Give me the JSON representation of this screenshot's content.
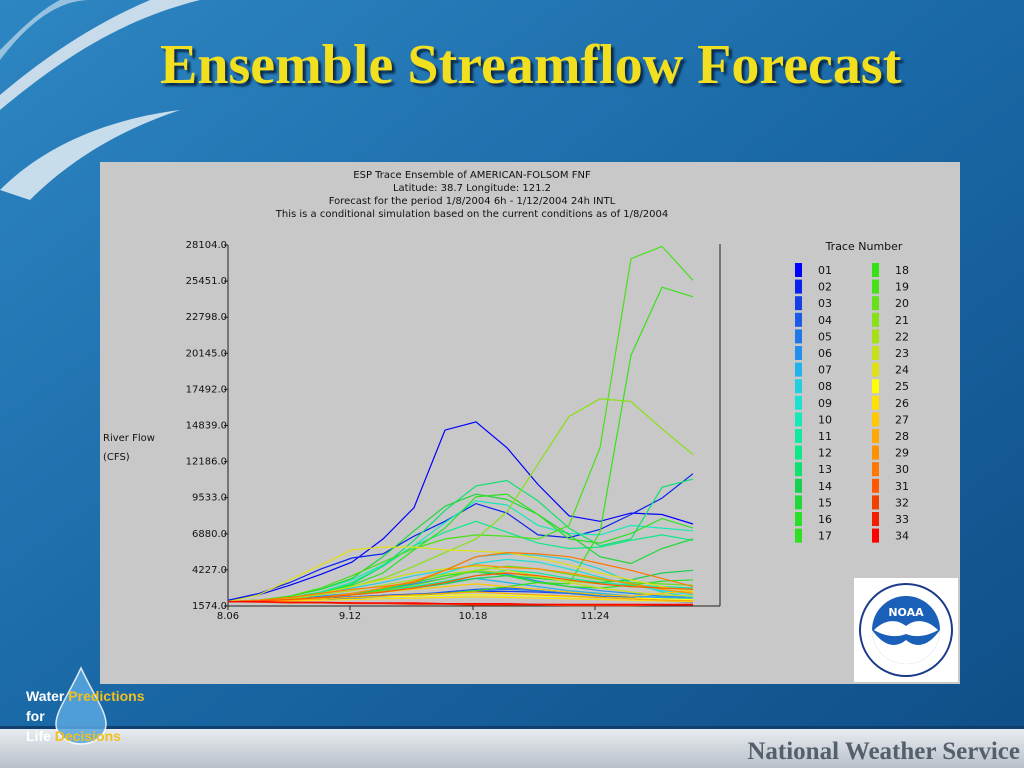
{
  "slide": {
    "title": "Ensemble Streamflow Forecast",
    "tagline": {
      "w1": "Water",
      "w2": "Predictions",
      "w3": "for",
      "w4": "Life",
      "w5": "Decisions"
    },
    "footer": "National Weather Service",
    "logo_text": "NOAA"
  },
  "chart_data": {
    "type": "line",
    "title_lines": [
      "ESP Trace Ensemble of AMERICAN-FOLSOM FNF",
      "Latitude: 38.7    Longitude:  121.2",
      "Forecast for the period 1/8/2004 6h - 1/12/2004 24h INTL",
      "This is a conditional simulation based on the current conditions as of 1/8/2004"
    ],
    "ylabel_lines": [
      "River Flow",
      "(CFS)"
    ],
    "ylim": [
      1574.0,
      28104.0
    ],
    "y_ticks": [
      "28104.0",
      "25451.0",
      "22798.0",
      "20145.0",
      "17492.0",
      "14839.0",
      "12186.0",
      "9533.0",
      "6880.0",
      "4227.0",
      "1574.0"
    ],
    "x_ticks": [
      "8.06",
      "9.12",
      "10.18",
      "11.24"
    ],
    "legend_title": "Trace Number",
    "grid": false,
    "legend_position": "right",
    "series": [
      {
        "name": "01",
        "color": "#0000ff",
        "values": [
          2000,
          2400,
          3100,
          3900,
          4800,
          6500,
          8800,
          14500,
          15100,
          13200,
          10500,
          8200,
          7800,
          8400,
          8300,
          7600
        ]
      },
      {
        "name": "02",
        "color": "#0a22ee",
        "values": [
          2000,
          2500,
          3300,
          4300,
          5100,
          5400,
          6700,
          7800,
          9100,
          8400,
          6800,
          6600,
          7200,
          8300,
          9500,
          11300
        ]
      },
      {
        "name": "03",
        "color": "#1540e8",
        "values": [
          1900,
          1950,
          2050,
          2150,
          2250,
          2350,
          2450,
          2550,
          2650,
          2650,
          2600,
          2500,
          2400,
          2300,
          2200,
          2100
        ]
      },
      {
        "name": "04",
        "color": "#1a5ae6",
        "values": [
          1900,
          1950,
          2000,
          2100,
          2200,
          2300,
          2400,
          2600,
          2800,
          2900,
          2800,
          2600,
          2400,
          2200,
          2000,
          1900
        ]
      },
      {
        "name": "05",
        "color": "#1f77e8",
        "values": [
          1900,
          1900,
          1950,
          2050,
          2150,
          2250,
          2350,
          2500,
          2700,
          2800,
          2700,
          2500,
          2300,
          2100,
          1950,
          1850
        ]
      },
      {
        "name": "06",
        "color": "#2290ea",
        "values": [
          1900,
          1950,
          2100,
          2300,
          2500,
          2800,
          3200,
          3600,
          4200,
          3900,
          3400,
          3000,
          2700,
          2500,
          2300,
          2200
        ]
      },
      {
        "name": "07",
        "color": "#22b2ee",
        "values": [
          1900,
          1950,
          2050,
          2200,
          2400,
          2600,
          2900,
          3300,
          3600,
          3300,
          3000,
          2700,
          2500,
          2300,
          2200,
          2100
        ]
      },
      {
        "name": "08",
        "color": "#22cfe0",
        "values": [
          1900,
          2000,
          2200,
          2500,
          2900,
          3300,
          3800,
          4200,
          5200,
          5400,
          5300,
          5000,
          4300,
          3300,
          2600,
          2200
        ]
      },
      {
        "name": "09",
        "color": "#1ee0d0",
        "values": [
          1900,
          1950,
          2050,
          2200,
          2500,
          2900,
          3400,
          4000,
          4700,
          5000,
          4800,
          4300,
          3700,
          3100,
          2700,
          2400
        ]
      },
      {
        "name": "10",
        "color": "#18e8b8",
        "values": [
          1900,
          2000,
          2300,
          2800,
          3500,
          4600,
          6000,
          7700,
          9300,
          9000,
          7500,
          6900,
          6800,
          7500,
          7300,
          7100
        ]
      },
      {
        "name": "11",
        "color": "#12e8a0",
        "values": [
          1900,
          1950,
          2050,
          2200,
          2400,
          2700,
          3000,
          3400,
          3800,
          4200,
          4000,
          3600,
          3300,
          3100,
          3000,
          2900
        ]
      },
      {
        "name": "12",
        "color": "#10e888",
        "values": [
          1900,
          2000,
          2200,
          2600,
          3300,
          4500,
          6000,
          7000,
          7800,
          7000,
          6200,
          5800,
          5900,
          6400,
          6800,
          6400
        ]
      },
      {
        "name": "13",
        "color": "#10e070",
        "values": [
          1900,
          2000,
          2200,
          2500,
          3200,
          4500,
          6400,
          8600,
          10400,
          10800,
          9300,
          7300,
          6000,
          6500,
          10300,
          10900
        ]
      },
      {
        "name": "14",
        "color": "#18d050",
        "values": [
          1900,
          1950,
          2050,
          2200,
          2400,
          2600,
          2900,
          3200,
          3600,
          3800,
          3600,
          3400,
          3300,
          3500,
          4000,
          4200
        ]
      },
      {
        "name": "15",
        "color": "#20d838",
        "values": [
          1900,
          2000,
          2300,
          2800,
          3600,
          5200,
          7100,
          8900,
          9800,
          9400,
          8300,
          6800,
          5200,
          4700,
          5800,
          6500
        ]
      },
      {
        "name": "16",
        "color": "#28e028",
        "values": [
          1900,
          1950,
          2050,
          2200,
          2400,
          2800,
          3300,
          3800,
          4100,
          3800,
          3300,
          3000,
          2900,
          3100,
          3400,
          3500
        ]
      },
      {
        "name": "17",
        "color": "#30e020",
        "values": [
          1900,
          2000,
          2200,
          2500,
          3100,
          4000,
          5700,
          7300,
          9600,
          9800,
          8300,
          6500,
          6200,
          6900,
          8000,
          7300
        ]
      },
      {
        "name": "18",
        "color": "#38e018",
        "values": [
          1900,
          1950,
          2000,
          2100,
          2200,
          2300,
          2400,
          2500,
          2700,
          3000,
          3300,
          3200,
          7000,
          20000,
          25000,
          24300
        ]
      },
      {
        "name": "19",
        "color": "#48e018",
        "values": [
          1900,
          2000,
          2300,
          2900,
          3800,
          4800,
          5800,
          6500,
          6800,
          6700,
          6500,
          7500,
          13200,
          27100,
          28000,
          25500
        ]
      },
      {
        "name": "20",
        "color": "#66e018",
        "values": [
          1900,
          1950,
          2050,
          2200,
          2400,
          2700,
          3100,
          3600,
          4200,
          4500,
          4300,
          3900,
          3500,
          3300,
          3200,
          3100
        ]
      },
      {
        "name": "21",
        "color": "#88e018",
        "values": [
          1900,
          2000,
          2200,
          2500,
          3000,
          3600,
          4500,
          5500,
          6500,
          8500,
          12000,
          15500,
          16800,
          16600,
          14600,
          12700
        ]
      },
      {
        "name": "22",
        "color": "#a8e018",
        "values": [
          1900,
          1950,
          2100,
          2400,
          2700,
          3100,
          3500,
          3900,
          4200,
          4000,
          3700,
          3400,
          3200,
          3000,
          2900,
          2800
        ]
      },
      {
        "name": "23",
        "color": "#c8e018",
        "values": [
          1900,
          2000,
          2200,
          2500,
          3000,
          3500,
          4000,
          4300,
          4500,
          4200,
          3800,
          3300,
          2900,
          2600,
          2400,
          2300
        ]
      },
      {
        "name": "24",
        "color": "#e0e018",
        "values": [
          1900,
          2400,
          3500,
          4600,
          5700,
          5900,
          5900,
          5700,
          5600,
          5500,
          5100,
          4600,
          4000,
          3500,
          3000,
          2600
        ]
      },
      {
        "name": "25",
        "color": "#ffff00",
        "values": [
          1900,
          1950,
          2000,
          2100,
          2200,
          2250,
          2300,
          2350,
          2400,
          2350,
          2300,
          2250,
          2200,
          2150,
          2100,
          2050
        ]
      },
      {
        "name": "26",
        "color": "#ffe000",
        "values": [
          1900,
          1900,
          1950,
          2000,
          2050,
          2100,
          2150,
          2200,
          2250,
          2200,
          2150,
          2100,
          2050,
          2000,
          1950,
          1900
        ]
      },
      {
        "name": "27",
        "color": "#ffc800",
        "values": [
          1900,
          1950,
          2050,
          2200,
          2400,
          2600,
          2800,
          3000,
          3200,
          3000,
          2800,
          2600,
          2400,
          2300,
          2500,
          2700
        ]
      },
      {
        "name": "28",
        "color": "#ffa800",
        "values": [
          1900,
          1950,
          2000,
          2100,
          2200,
          2300,
          2400,
          2500,
          2600,
          2500,
          2400,
          2300,
          2200,
          2100,
          2000,
          1950
        ]
      },
      {
        "name": "29",
        "color": "#ff9000",
        "values": [
          1900,
          1950,
          2050,
          2200,
          2500,
          2900,
          3400,
          4200,
          4600,
          4400,
          4300,
          4000,
          3600,
          3200,
          2800,
          2500
        ]
      },
      {
        "name": "30",
        "color": "#ff7800",
        "values": [
          1900,
          2000,
          2200,
          2500,
          2800,
          3000,
          3300,
          4200,
          5200,
          5500,
          5400,
          5200,
          4700,
          4200,
          3600,
          3000
        ]
      },
      {
        "name": "31",
        "color": "#ff5800",
        "values": [
          1900,
          1950,
          2050,
          2200,
          2400,
          2600,
          2900,
          3300,
          3800,
          4000,
          3800,
          3500,
          3200,
          3000,
          2900,
          2800
        ]
      },
      {
        "name": "32",
        "color": "#f04000",
        "values": [
          1900,
          1850,
          1800,
          1800,
          1750,
          1750,
          1700,
          1700,
          1650,
          1650,
          1650,
          1600,
          1600,
          1600,
          1650,
          1700
        ]
      },
      {
        "name": "33",
        "color": "#f02000",
        "values": [
          1900,
          1880,
          1850,
          1820,
          1800,
          1780,
          1760,
          1740,
          1720,
          1700,
          1690,
          1680,
          1670,
          1660,
          1650,
          1650
        ]
      },
      {
        "name": "34",
        "color": "#ff0000",
        "values": [
          1900,
          1900,
          1850,
          1850,
          1800,
          1800,
          1800,
          1750,
          1750,
          1750,
          1700,
          1700,
          1700,
          1700,
          1700,
          1700
        ]
      }
    ]
  },
  "colors": {
    "background_blue": "#1e6ea8",
    "panel_gray": "#c8c8c8",
    "title_yellow": "#f2df20",
    "footer_gray": "#54606c"
  }
}
